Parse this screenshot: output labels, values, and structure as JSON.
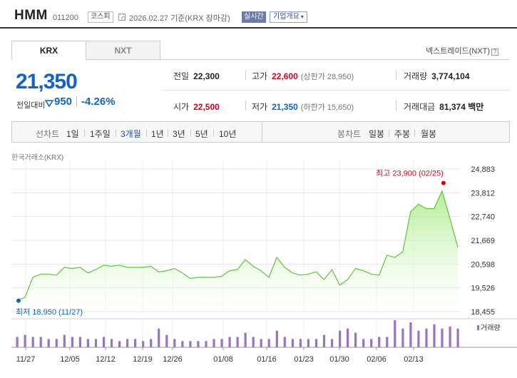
{
  "header": {
    "name": "HMM",
    "code": "011200",
    "market": "코스피",
    "date_text": "2026.02.27  기준(KRX 장마감)",
    "realtime": "실시간",
    "company_info": "기업개요",
    "clock_icon": "clock-icon",
    "dropdown_icon": "chevron-down-icon"
  },
  "tabs": {
    "krx": "KRX",
    "nxt": "NXT",
    "nxt_link": "넥스트레이드(NXT)",
    "help_icon": "help-icon"
  },
  "price": {
    "current": "21,350",
    "change_label": "전일대비",
    "change_value": "950",
    "change_percent": "-4.26%",
    "change_direction_icon": "down-triangle-icon",
    "down_color": "#1262c8",
    "up_color": "#d2051e"
  },
  "stats": {
    "prev_close": {
      "label": "전일",
      "value": "22,300"
    },
    "high": {
      "label": "고가",
      "value": "22,600",
      "sub": "(상한가 28,950)"
    },
    "volume": {
      "label": "거래량",
      "value": "3,774,104"
    },
    "open": {
      "label": "시가",
      "value": "22,500"
    },
    "low": {
      "label": "저가",
      "value": "21,350",
      "sub": "(하한가 15,650)"
    },
    "amount": {
      "label": "거래대금",
      "value": "81,374 백만"
    }
  },
  "period_bar": {
    "line_label": "선차트",
    "line_periods": [
      "1일",
      "1주일",
      "3개월",
      "1년",
      "3년",
      "5년",
      "10년"
    ],
    "active_period": "3개월",
    "candle_label": "봉차트",
    "candle_periods": [
      "일봉",
      "주봉",
      "월봉"
    ]
  },
  "chart_source": "한국거래소(KRX)",
  "chart_data": {
    "type": "area",
    "y_ticks": [
      "24,883",
      "23,812",
      "22,740",
      "21,669",
      "20,598",
      "19,526",
      "18,455"
    ],
    "ylim": [
      18455,
      24883
    ],
    "x_ticks": [
      "11/27",
      "12/05",
      "12/12",
      "12/19",
      "12/26",
      "01/08",
      "01/16",
      "01/23",
      "01/30",
      "02/06",
      "02/13"
    ],
    "high_label": "최고 23,900 (02/25)",
    "low_label": "최저 18,950 (11/27)",
    "high_value": 23900,
    "low_value": 18950,
    "volume_legend": "거래량",
    "line_color": "#5cc53a",
    "volume_color": "#9873c4",
    "prices": [
      18950,
      19100,
      20000,
      20150,
      20150,
      20100,
      20450,
      20400,
      20450,
      20200,
      20350,
      20550,
      20500,
      20550,
      20450,
      20450,
      20450,
      20500,
      20250,
      20300,
      20400,
      20200,
      19950,
      20000,
      20000,
      20000,
      20050,
      20300,
      20350,
      20800,
      20500,
      20300,
      20000,
      20900,
      20450,
      20200,
      20100,
      20150,
      20250,
      19900,
      20350,
      19650,
      19900,
      20400,
      20300,
      20150,
      20100,
      21000,
      20900,
      21150,
      22950,
      23300,
      23100,
      23100,
      23900,
      22650,
      21350
    ],
    "volume": [
      5,
      6,
      5,
      5,
      4,
      4,
      6,
      5,
      5,
      4,
      4,
      5,
      4,
      3,
      4,
      4,
      3,
      4,
      9,
      6,
      4,
      3,
      3,
      3,
      3,
      4,
      4,
      5,
      5,
      7,
      5,
      4,
      4,
      8,
      5,
      4,
      4,
      4,
      4,
      6,
      4,
      8,
      9,
      7,
      4,
      4,
      5,
      5,
      13,
      9,
      12,
      8,
      9,
      11,
      9,
      10,
      9
    ]
  }
}
